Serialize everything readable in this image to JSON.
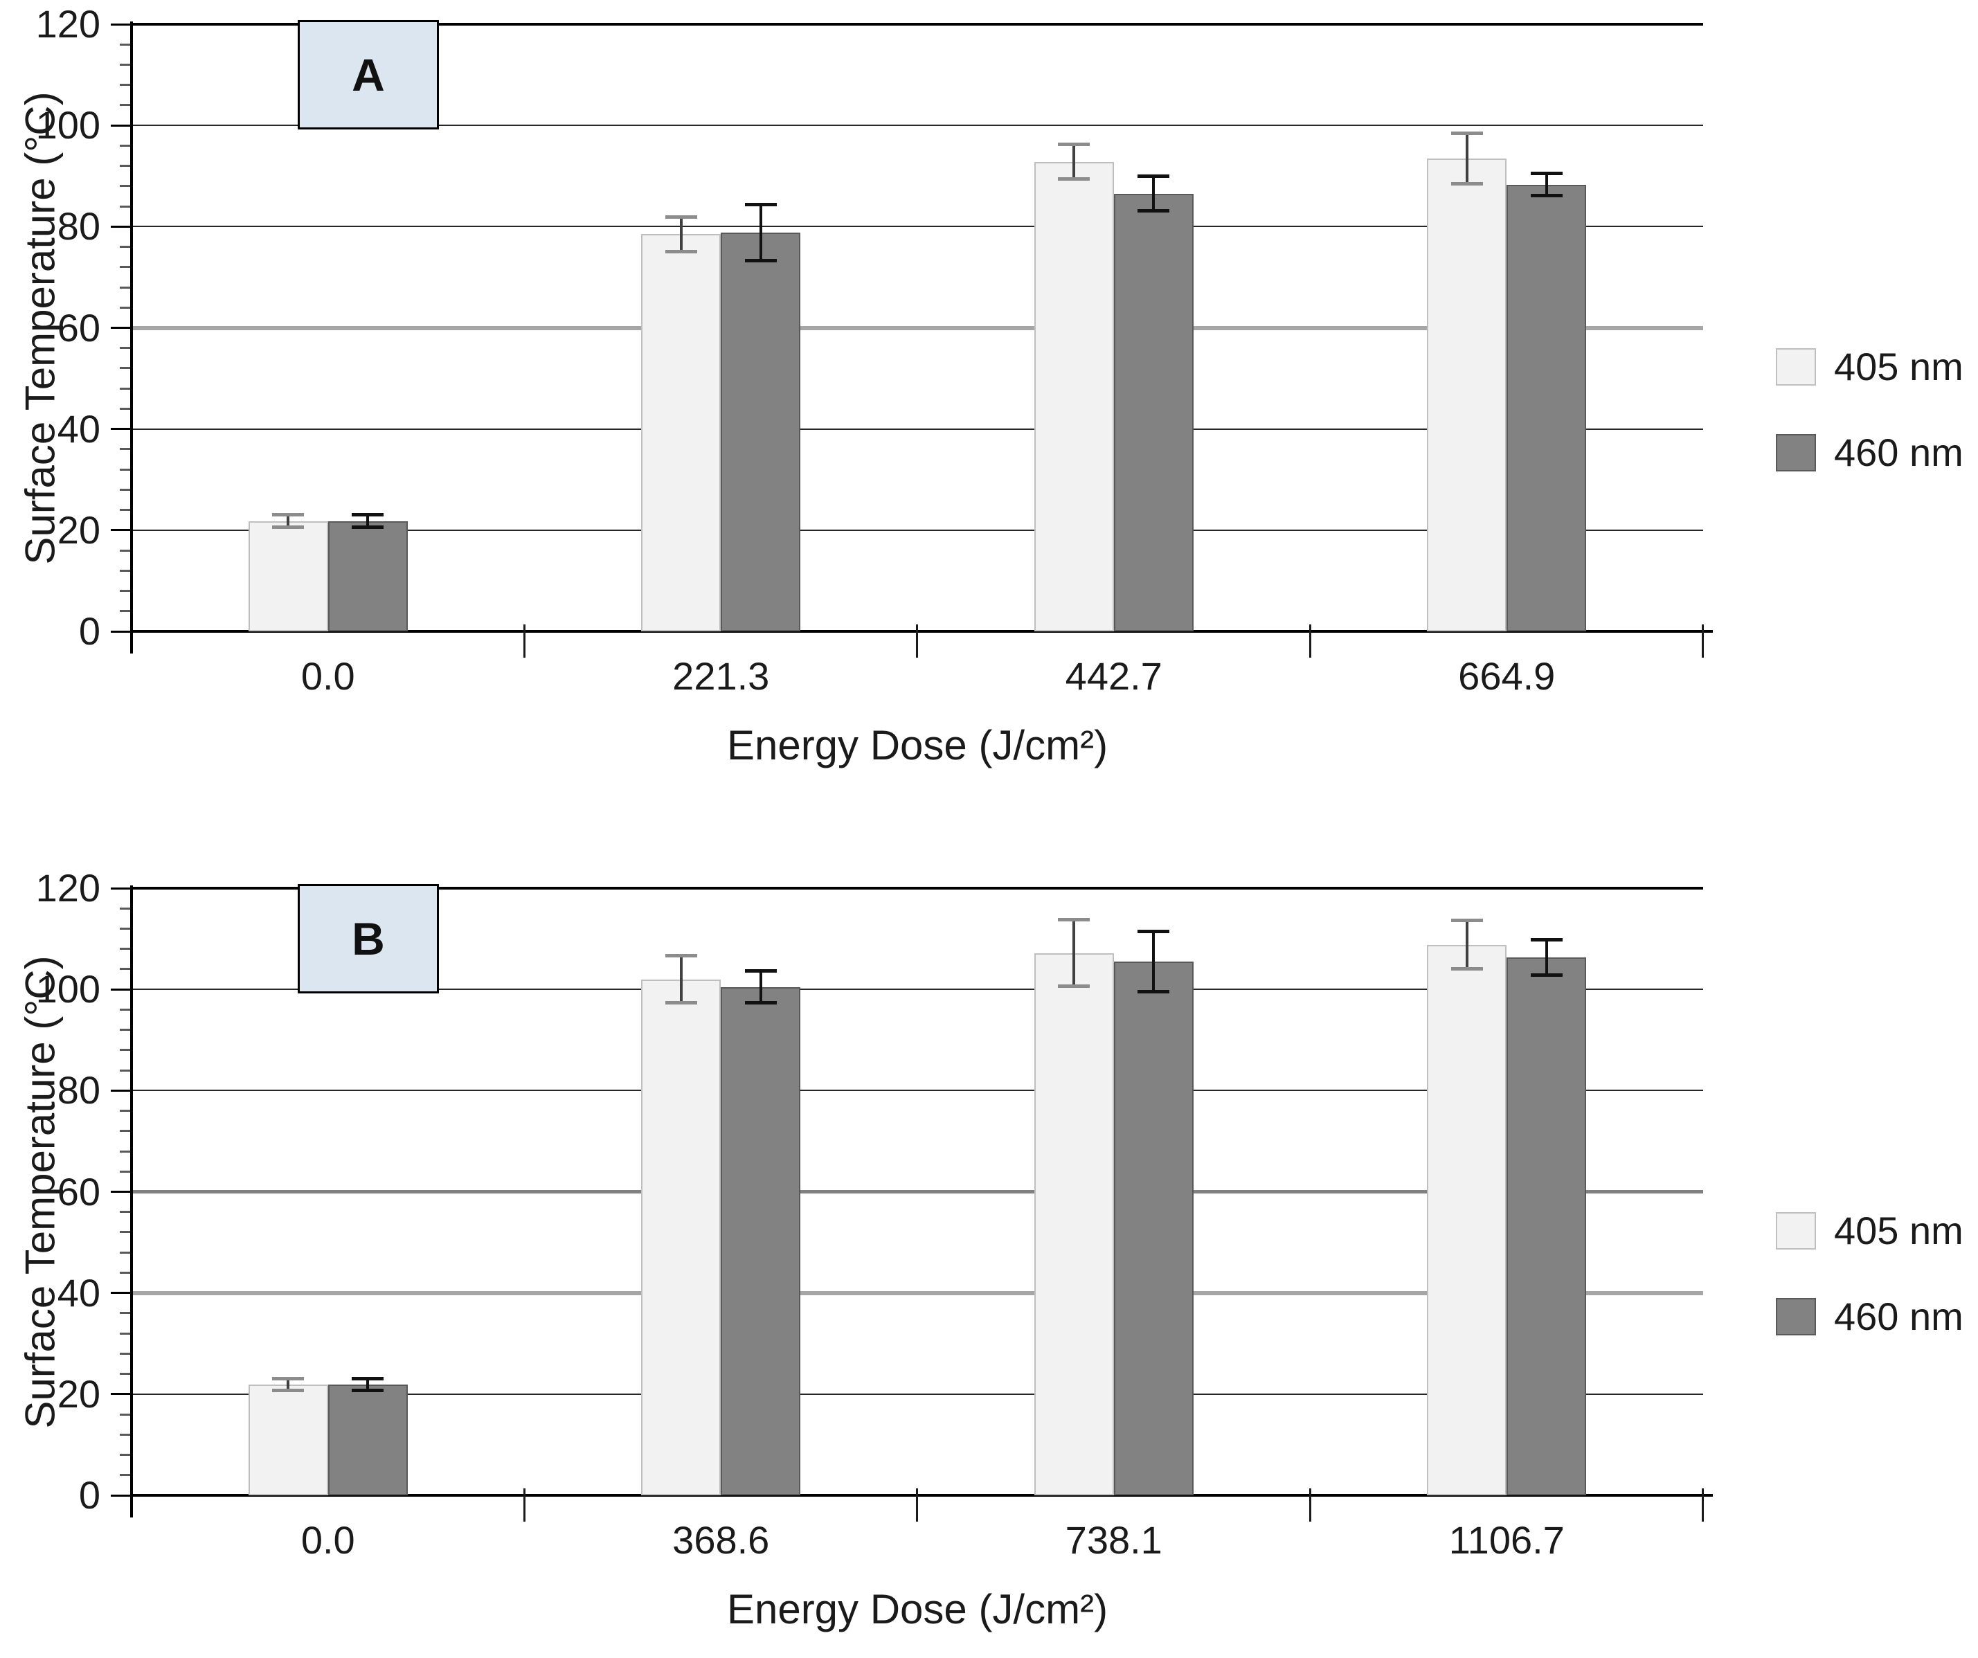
{
  "page": {
    "background": "#ffffff"
  },
  "colors": {
    "axis": "#000000",
    "gridline_dark": "#262626",
    "gridline_top": "#000000",
    "text": "#1a1a1a",
    "panel_box_fill": "#dce6f1",
    "panel_box_border": "#000000"
  },
  "chart_data": [
    {
      "type": "bar",
      "panel_label": "A",
      "xlabel": "Energy Dose (J/cm²)",
      "ylabel": "Surface Temperature (°C)",
      "ylim": [
        0,
        120
      ],
      "ytick_step": 20,
      "yminor_step": 4,
      "grid": "horizontal-major",
      "legend_position": "right",
      "emphasis_gridlines": [
        {
          "value": 60,
          "color": "#a6a6a6",
          "width": 6
        }
      ],
      "categories": [
        "0.0",
        "221.3",
        "442.7",
        "664.9"
      ],
      "series": [
        {
          "name": "405 nm",
          "fill": "#f2f2f2",
          "border": "#bfbfbf",
          "err_line": "#404040",
          "err_cap": "#8c8c8c",
          "values": [
            21.8,
            78.5,
            92.8,
            93.5
          ],
          "errors": [
            1.2,
            3.4,
            3.4,
            5.0
          ]
        },
        {
          "name": "460 nm",
          "fill": "#828282",
          "border": "#595959",
          "err_line": "#111111",
          "err_cap": "#111111",
          "values": [
            21.8,
            78.8,
            86.5,
            88.3
          ],
          "errors": [
            1.2,
            5.5,
            3.4,
            2.2
          ]
        }
      ]
    },
    {
      "type": "bar",
      "panel_label": "B",
      "xlabel": "Energy Dose (J/cm²)",
      "ylabel": "Surface Temperature (°C)",
      "ylim": [
        0,
        120
      ],
      "ytick_step": 20,
      "yminor_step": 4,
      "grid": "horizontal-major",
      "legend_position": "right",
      "emphasis_gridlines": [
        {
          "value": 60,
          "color": "#808080",
          "width": 5
        },
        {
          "value": 40,
          "color": "#a6a6a6",
          "width": 6
        }
      ],
      "categories": [
        "0.0",
        "368.6",
        "738.1",
        "1106.7"
      ],
      "series": [
        {
          "name": "405 nm",
          "fill": "#f2f2f2",
          "border": "#bfbfbf",
          "err_line": "#404040",
          "err_cap": "#8c8c8c",
          "values": [
            21.9,
            102.0,
            107.2,
            108.8
          ],
          "errors": [
            1.2,
            4.6,
            6.6,
            4.8
          ]
        },
        {
          "name": "460 nm",
          "fill": "#828282",
          "border": "#595959",
          "err_line": "#111111",
          "err_cap": "#111111",
          "values": [
            21.9,
            100.5,
            105.5,
            106.3
          ],
          "errors": [
            1.2,
            3.1,
            6.0,
            3.5
          ]
        }
      ]
    }
  ]
}
